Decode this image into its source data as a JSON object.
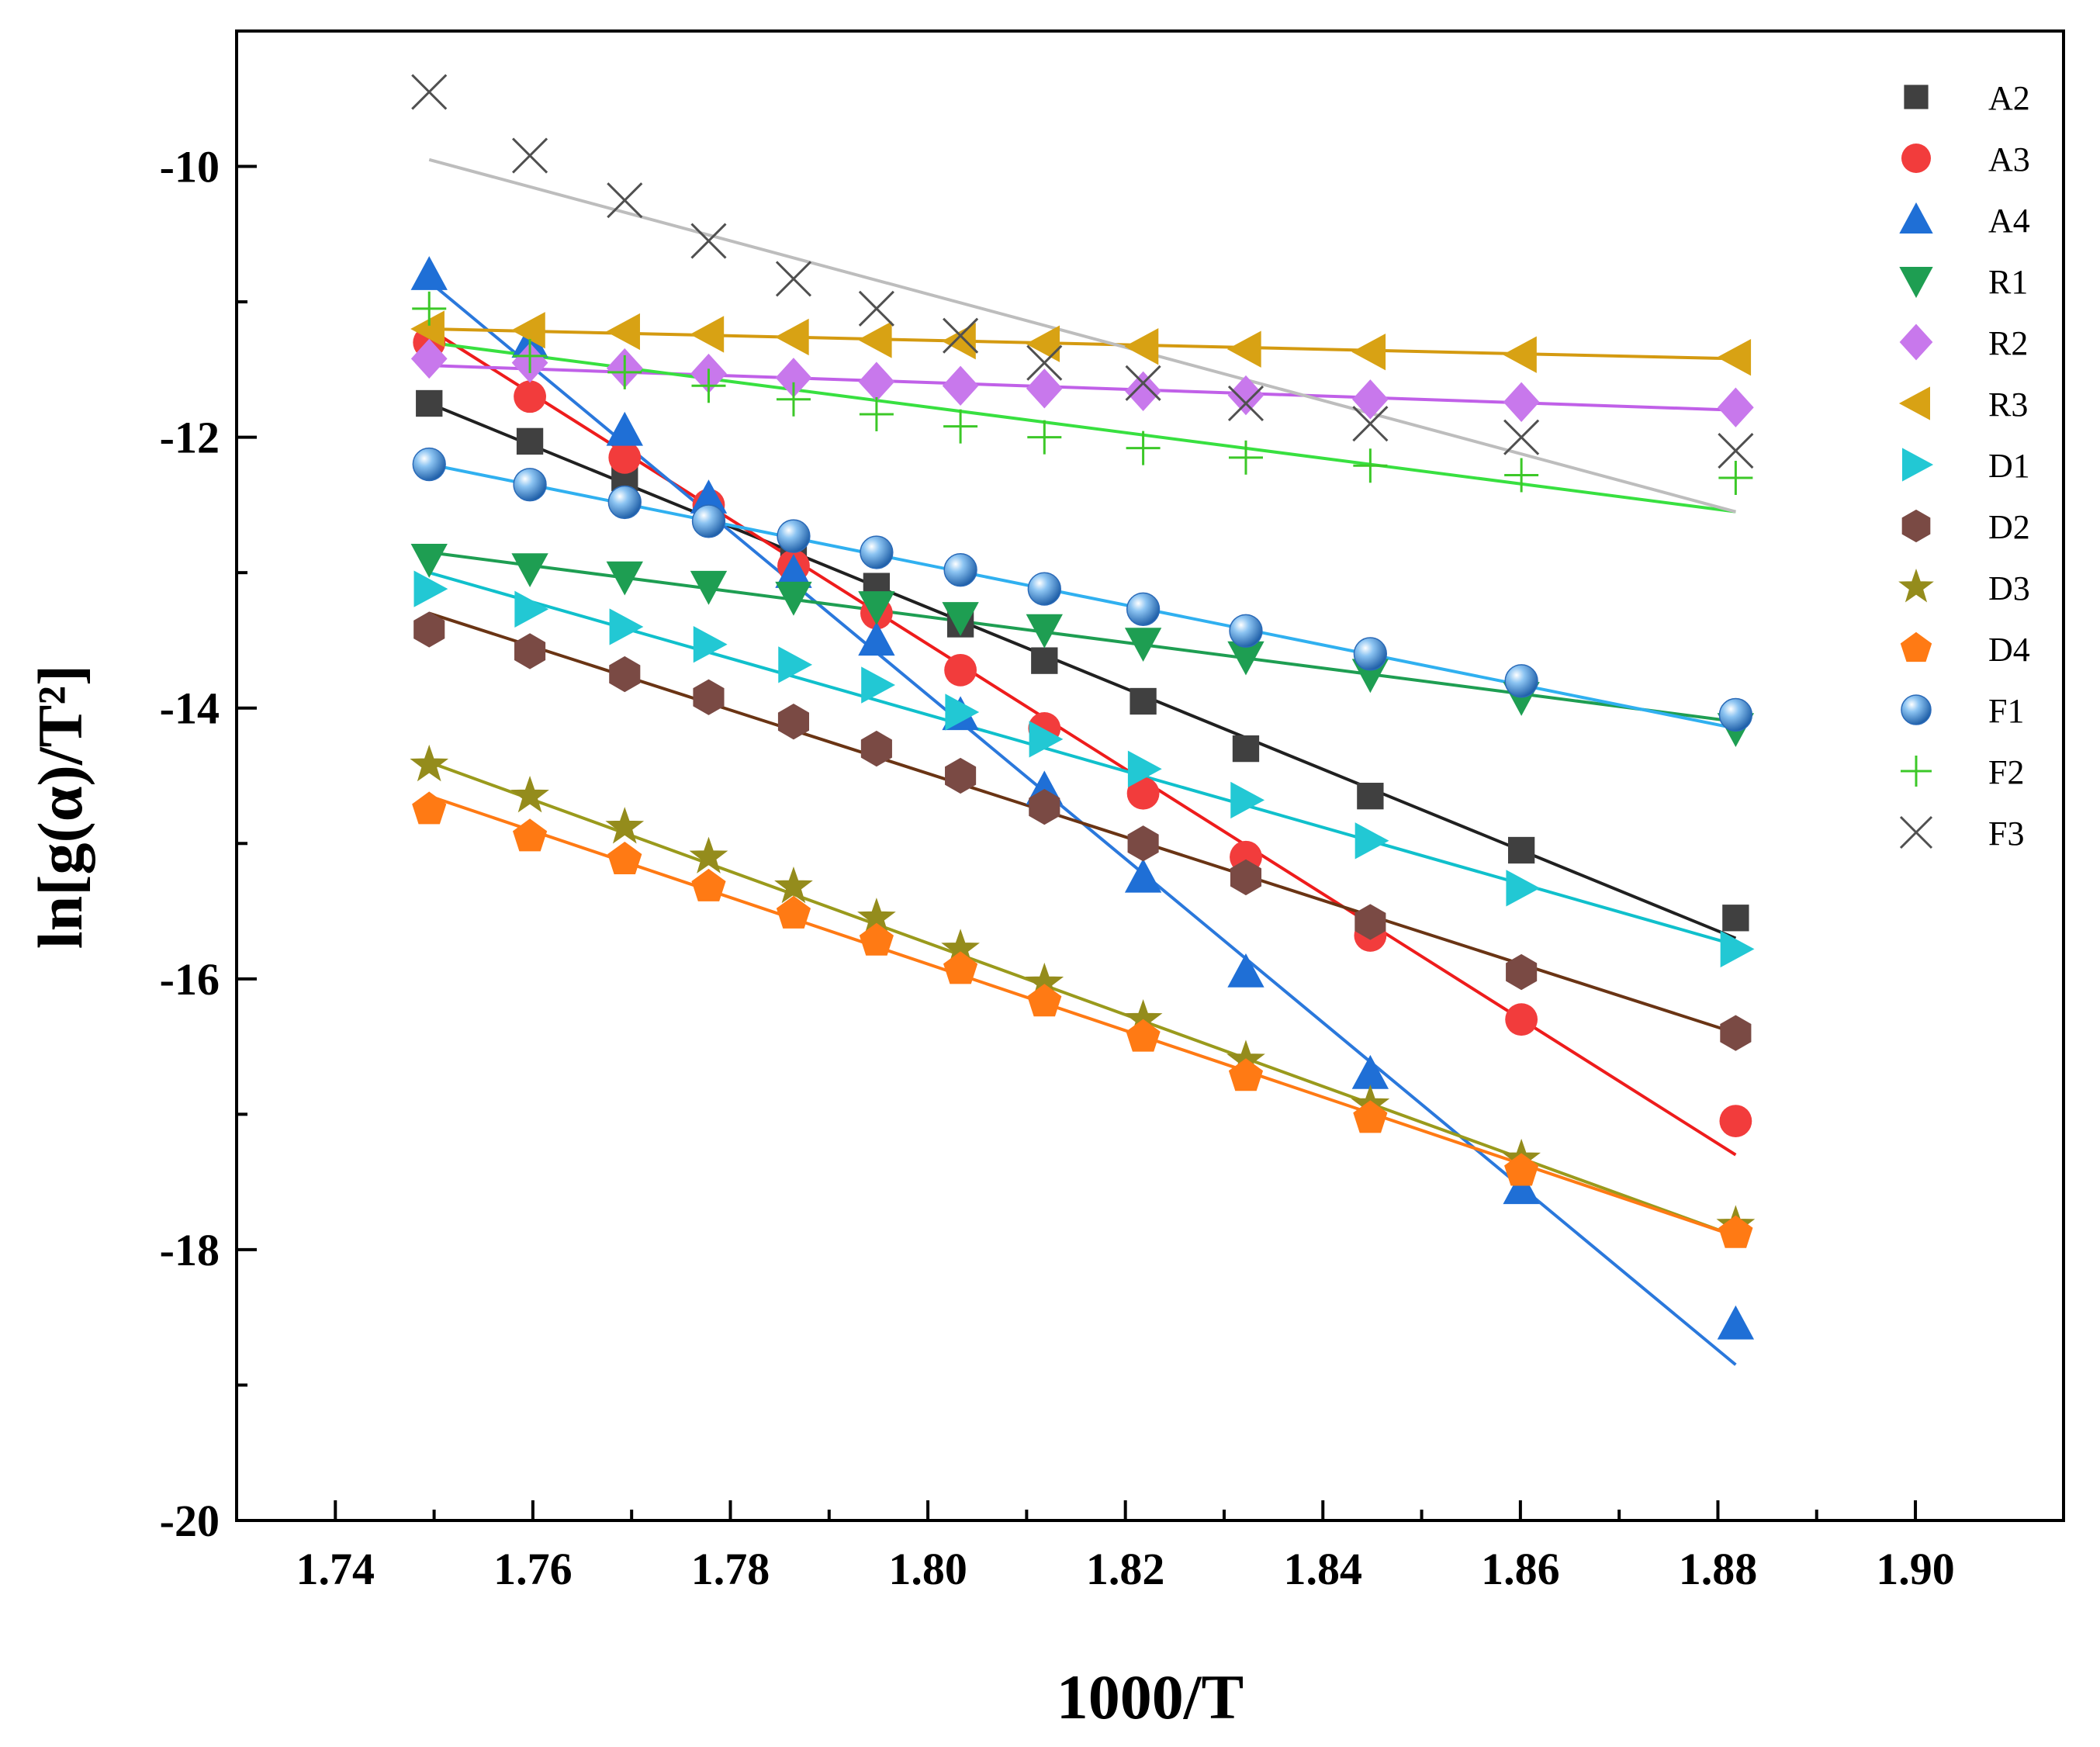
{
  "chart_data": {
    "type": "scatter",
    "xlabel": "1000/T",
    "ylabel": "ln[g(α)/T²]",
    "xlim": [
      1.73,
      1.915
    ],
    "ylim": [
      -20,
      -9
    ],
    "xticks": [
      1.74,
      1.76,
      1.78,
      1.8,
      1.82,
      1.84,
      1.86,
      1.88,
      1.9
    ],
    "xtick_labels": [
      "1.74",
      "1.76",
      "1.78",
      "1.80",
      "1.82",
      "1.84",
      "1.86",
      "1.88",
      "1.90"
    ],
    "yticks": [
      -20,
      -18,
      -16,
      -14,
      -12,
      -10
    ],
    "ytick_labels": [
      "-20",
      "-18",
      "-16",
      "-14",
      "-12",
      "-10"
    ],
    "grid": false,
    "legend": "top-right",
    "x": [
      1.7495,
      1.7597,
      1.7693,
      1.7778,
      1.7864,
      1.7948,
      1.8033,
      1.8118,
      1.8218,
      1.8322,
      1.8448,
      1.8601,
      1.8818
    ],
    "series": [
      {
        "name": "A2",
        "marker": "square",
        "color": "#404040",
        "line_color": "#202020",
        "values": [
          -11.75,
          -12.03,
          -12.3,
          -12.55,
          -12.85,
          -13.1,
          -13.38,
          -13.65,
          -13.95,
          -14.3,
          -14.65,
          -15.05,
          -15.55
        ],
        "fit": [
          -11.75,
          -15.7
        ]
      },
      {
        "name": "A3",
        "marker": "circle",
        "color": "#f23c3c",
        "line_color": "#ee1c1c",
        "values": [
          -11.3,
          -11.7,
          -12.15,
          -12.5,
          -12.95,
          -13.3,
          -13.72,
          -14.15,
          -14.63,
          -15.1,
          -15.68,
          -16.3,
          -17.05
        ],
        "fit": [
          -11.2,
          -17.3
        ]
      },
      {
        "name": "A4",
        "marker": "triangle-up",
        "color": "#1f6fd6",
        "line_color": "#2a78dc",
        "values": [
          -10.8,
          -11.3,
          -11.95,
          -12.45,
          -13.0,
          -13.5,
          -14.05,
          -14.6,
          -15.25,
          -15.95,
          -16.7,
          -17.55,
          -18.55
        ],
        "fit": [
          -10.85,
          -18.85
        ]
      },
      {
        "name": "R1",
        "marker": "triangle-down",
        "color": "#1e9e52",
        "line_color": "#1e9e52",
        "values": [
          -12.9,
          -12.97,
          -13.03,
          -13.1,
          -13.18,
          -13.25,
          -13.33,
          -13.42,
          -13.52,
          -13.62,
          -13.75,
          -13.92,
          -14.15
        ],
        "fit": [
          -12.85,
          -14.1
        ]
      },
      {
        "name": "R2",
        "marker": "diamond",
        "color": "#c878ec",
        "line_color": "#c060e8",
        "values": [
          -11.42,
          -11.45,
          -11.49,
          -11.53,
          -11.56,
          -11.59,
          -11.62,
          -11.64,
          -11.66,
          -11.69,
          -11.72,
          -11.74,
          -11.78
        ],
        "fit": [
          -11.47,
          -11.8
        ]
      },
      {
        "name": "R3",
        "marker": "triangle-left",
        "color": "#d8a214",
        "line_color": "#d49a10",
        "values": [
          -11.2,
          -11.21,
          -11.22,
          -11.24,
          -11.26,
          -11.28,
          -11.29,
          -11.31,
          -11.33,
          -11.35,
          -11.37,
          -11.39,
          -11.41
        ],
        "fit": [
          -11.2,
          -11.42
        ]
      },
      {
        "name": "D1",
        "marker": "triangle-right",
        "color": "#22c8d4",
        "line_color": "#10c0cc",
        "values": [
          -13.12,
          -13.27,
          -13.4,
          -13.53,
          -13.68,
          -13.83,
          -14.03,
          -14.23,
          -14.45,
          -14.68,
          -14.98,
          -15.33,
          -15.78
        ],
        "fit": [
          -13.0,
          -15.75
        ]
      },
      {
        "name": "D2",
        "marker": "hexagon",
        "color": "#7a4a44",
        "line_color": "#6a3414",
        "values": [
          -13.42,
          -13.58,
          -13.75,
          -13.92,
          -14.1,
          -14.3,
          -14.5,
          -14.73,
          -15.0,
          -15.25,
          -15.58,
          -15.95,
          -16.4
        ],
        "fit": [
          -13.3,
          -16.4
        ]
      },
      {
        "name": "D3",
        "marker": "star",
        "color": "#948c1c",
        "line_color": "#9a9a1c",
        "values": [
          -14.42,
          -14.65,
          -14.88,
          -15.1,
          -15.32,
          -15.55,
          -15.78,
          -16.03,
          -16.3,
          -16.6,
          -16.93,
          -17.33,
          -17.82
        ],
        "fit": [
          -14.4,
          -17.9
        ]
      },
      {
        "name": "D4",
        "marker": "pentagon",
        "color": "#ff7a14",
        "line_color": "#ff7a14",
        "values": [
          -14.75,
          -14.95,
          -15.12,
          -15.32,
          -15.52,
          -15.72,
          -15.93,
          -16.17,
          -16.43,
          -16.72,
          -17.03,
          -17.42,
          -17.88
        ],
        "fit": [
          -14.65,
          -17.9
        ]
      },
      {
        "name": "F1",
        "marker": "sphere",
        "color": "#3c8cd8",
        "line_color": "#30b0f0",
        "values": [
          -12.2,
          -12.35,
          -12.48,
          -12.62,
          -12.73,
          -12.85,
          -12.98,
          -13.12,
          -13.27,
          -13.43,
          -13.6,
          -13.8,
          -14.05
        ],
        "fit": [
          -12.2,
          -14.15
        ]
      },
      {
        "name": "F2",
        "marker": "plus",
        "color": "#3cc828",
        "line_color": "#38e040",
        "values": [
          -11.05,
          -11.4,
          -11.52,
          -11.62,
          -11.72,
          -11.83,
          -11.92,
          -12.0,
          -12.08,
          -12.15,
          -12.21,
          -12.28,
          -12.3
        ],
        "fit": [
          -11.3,
          -12.55
        ]
      },
      {
        "name": "F3",
        "marker": "cross",
        "color": "#505050",
        "line_color": "#bdbdbd",
        "values": [
          -9.45,
          -9.92,
          -10.25,
          -10.55,
          -10.83,
          -11.05,
          -11.25,
          -11.45,
          -11.6,
          -11.75,
          -11.9,
          -12.0,
          -12.1
        ],
        "fit": [
          -9.95,
          -12.55
        ]
      }
    ]
  }
}
